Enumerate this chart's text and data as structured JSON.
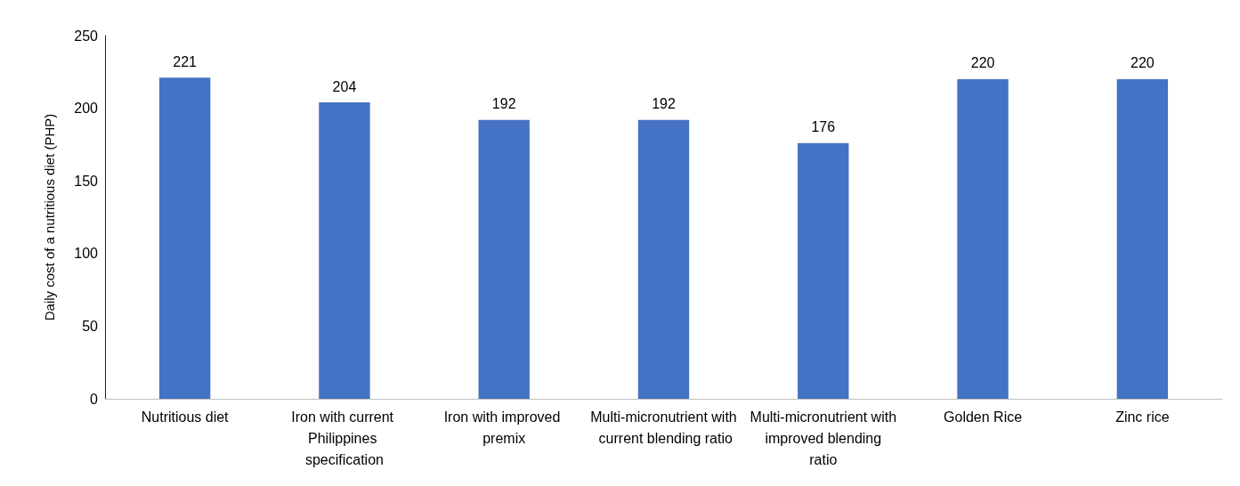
{
  "chart_data": {
    "type": "bar",
    "ylabel": "Daily cost of a nutritious diet (PHP)",
    "categories": [
      "Nutritious diet",
      "Iron with current Philippines specification",
      "Iron with improved premix",
      "Multi-micronutrient with current blending ratio",
      "Multi-micronutrient with improved blending ratio",
      "Golden Rice",
      "Zinc rice"
    ],
    "values": [
      221,
      204,
      192,
      192,
      176,
      220,
      220
    ],
    "color": "#4472c4",
    "ylim": [
      0,
      250
    ],
    "yticks": [
      0,
      50,
      100,
      150,
      200,
      250
    ],
    "grid": false,
    "data_labels": true
  }
}
